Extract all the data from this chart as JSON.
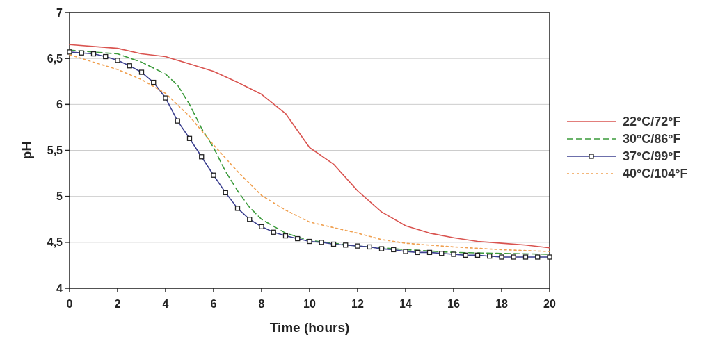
{
  "chart_data": {
    "type": "line",
    "xlabel": "Time (hours)",
    "ylabel": "pH",
    "xlim": [
      0,
      20
    ],
    "xticks": [
      0,
      2,
      4,
      6,
      8,
      10,
      12,
      14,
      16,
      18,
      20
    ],
    "ylim": [
      4,
      7
    ],
    "yticks": [
      4,
      {
        "value": 4.5,
        "label": "4,5"
      },
      5,
      {
        "value": 5.5,
        "label": "5,5"
      },
      6,
      {
        "value": 6.5,
        "label": "6,5"
      },
      7
    ],
    "grid": "y",
    "legend": "right",
    "series": [
      {
        "name": "22°C/72°F",
        "color": "#d9534f",
        "line_style": "solid",
        "marker": "none",
        "x": [
          0,
          2,
          3,
          4,
          5,
          6,
          7,
          8,
          9,
          10,
          11,
          12,
          13,
          14,
          15,
          16,
          17,
          18,
          19,
          20
        ],
        "values": [
          6.65,
          6.61,
          6.55,
          6.52,
          6.44,
          6.36,
          6.24,
          6.11,
          5.9,
          5.53,
          5.35,
          5.06,
          4.83,
          4.68,
          4.6,
          4.55,
          4.51,
          4.49,
          4.47,
          4.44
        ]
      },
      {
        "name": "30°C/86°F",
        "color": "#3a9a3a",
        "line_style": "dashed",
        "marker": "none",
        "x": [
          0,
          2,
          3,
          4,
          4.5,
          5,
          5.5,
          6,
          6.5,
          7,
          7.5,
          8,
          9,
          10,
          12,
          14,
          16,
          18,
          20
        ],
        "values": [
          6.59,
          6.55,
          6.46,
          6.33,
          6.21,
          6.0,
          5.74,
          5.53,
          5.27,
          5.06,
          4.88,
          4.75,
          4.6,
          4.52,
          4.46,
          4.42,
          4.39,
          4.38,
          4.37
        ]
      },
      {
        "name": "37°C/99°F",
        "color": "#3b3f8f",
        "line_style": "solid",
        "marker": "square",
        "x": [
          0,
          0.5,
          1,
          1.5,
          2,
          2.5,
          3,
          3.5,
          4,
          4.5,
          5,
          5.5,
          6,
          6.5,
          7,
          7.5,
          8,
          8.5,
          9,
          9.5,
          10,
          10.5,
          11,
          11.5,
          12,
          12.5,
          13,
          13.5,
          14,
          14.5,
          15,
          15.5,
          16,
          16.5,
          17,
          17.5,
          18,
          18.5,
          19,
          19.5,
          20
        ],
        "values": [
          6.57,
          6.56,
          6.55,
          6.52,
          6.48,
          6.42,
          6.35,
          6.24,
          6.07,
          5.82,
          5.63,
          5.43,
          5.23,
          5.04,
          4.87,
          4.75,
          4.67,
          4.61,
          4.57,
          4.54,
          4.51,
          4.5,
          4.48,
          4.47,
          4.46,
          4.45,
          4.43,
          4.42,
          4.4,
          4.39,
          4.39,
          4.38,
          4.37,
          4.36,
          4.36,
          4.35,
          4.34,
          4.34,
          4.34,
          4.34,
          4.34
        ]
      },
      {
        "name": "40°C/104°F",
        "color": "#f0a050",
        "line_style": "dotted",
        "marker": "none",
        "x": [
          0,
          2,
          3,
          4,
          5,
          6,
          7,
          8,
          9,
          10,
          11,
          12,
          13,
          14,
          16,
          18,
          20
        ],
        "values": [
          6.54,
          6.38,
          6.27,
          6.12,
          5.87,
          5.56,
          5.27,
          5.01,
          4.85,
          4.72,
          4.66,
          4.6,
          4.53,
          4.49,
          4.45,
          4.42,
          4.4
        ]
      }
    ]
  }
}
